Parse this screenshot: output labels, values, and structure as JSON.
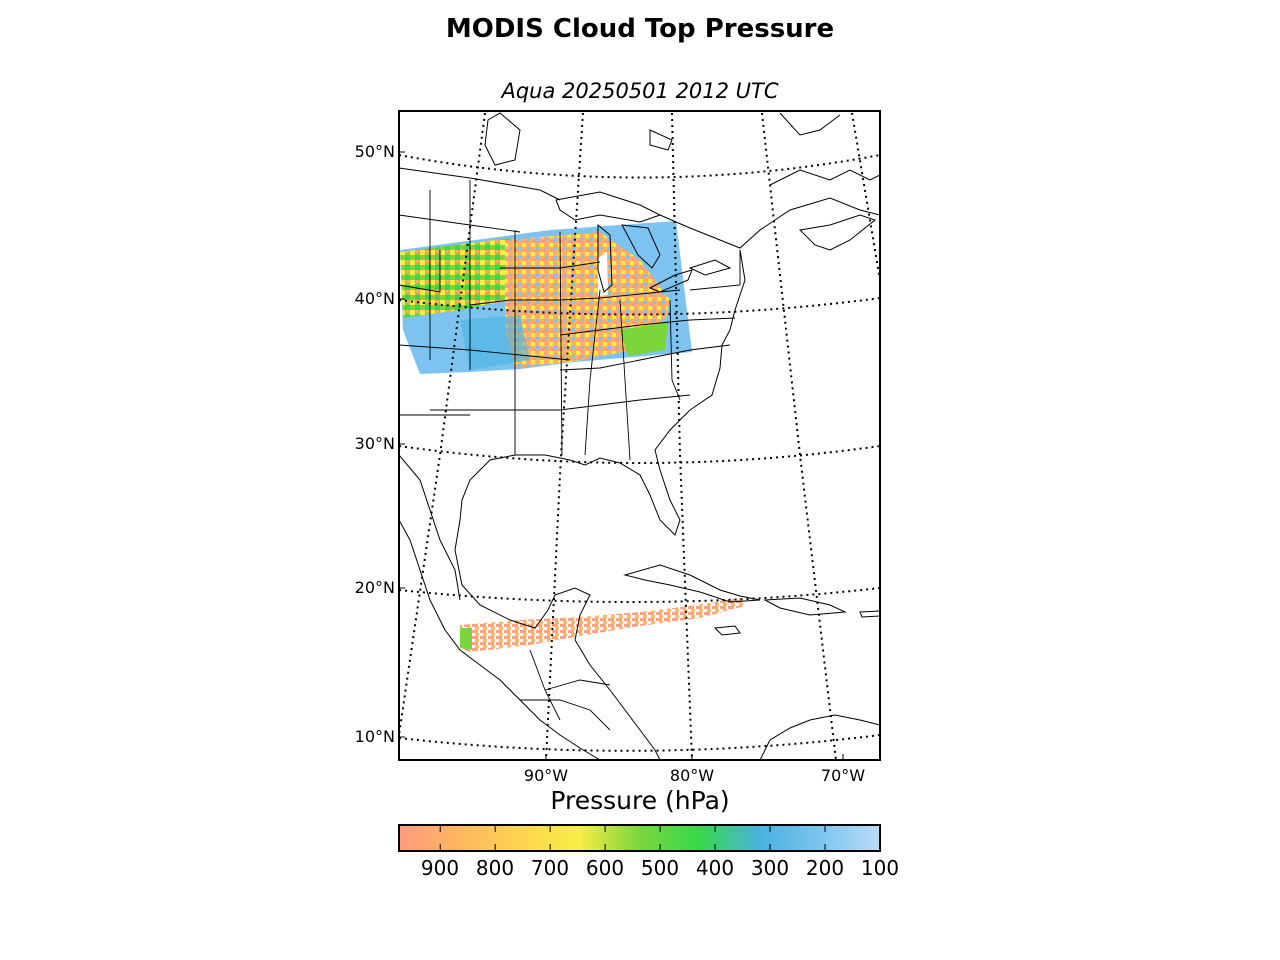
{
  "title": "MODIS Cloud Top Pressure",
  "subtitle": "Aqua 20250501 2012 UTC",
  "latitude_labels": [
    "50°N",
    "40°N",
    "30°N",
    "20°N",
    "10°N"
  ],
  "longitude_labels": [
    "90°W",
    "80°W",
    "70°W"
  ],
  "colorbar": {
    "label": "Pressure (hPa)",
    "ticks": [
      "900",
      "800",
      "700",
      "600",
      "500",
      "400",
      "300",
      "200",
      "100"
    ],
    "range": [
      975,
      100
    ],
    "colors": [
      "#ff9a7f",
      "#ffb760",
      "#ffd450",
      "#f7ee45",
      "#7bd63c",
      "#38d84b",
      "#4ab2e0",
      "#7cc4ef",
      "#b9dcf7"
    ]
  },
  "map": {
    "projection": "Lambert conformal",
    "lat_range": [
      8,
      53
    ],
    "lon_range": [
      -100,
      -68
    ],
    "graticule": "dotted every 10°",
    "overlay": "cloud top pressure swaths over US Midwest / Great Lakes and Caribbean"
  }
}
